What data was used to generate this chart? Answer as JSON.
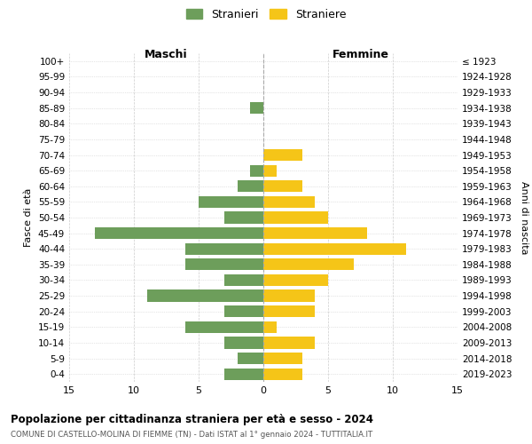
{
  "age_groups": [
    "100+",
    "95-99",
    "90-94",
    "85-89",
    "80-84",
    "75-79",
    "70-74",
    "65-69",
    "60-64",
    "55-59",
    "50-54",
    "45-49",
    "40-44",
    "35-39",
    "30-34",
    "25-29",
    "20-24",
    "15-19",
    "10-14",
    "5-9",
    "0-4"
  ],
  "birth_years": [
    "≤ 1923",
    "1924-1928",
    "1929-1933",
    "1934-1938",
    "1939-1943",
    "1944-1948",
    "1949-1953",
    "1954-1958",
    "1959-1963",
    "1964-1968",
    "1969-1973",
    "1974-1978",
    "1979-1983",
    "1984-1988",
    "1989-1993",
    "1994-1998",
    "1999-2003",
    "2004-2008",
    "2009-2013",
    "2014-2018",
    "2019-2023"
  ],
  "males": [
    0,
    0,
    0,
    1,
    0,
    0,
    0,
    1,
    2,
    5,
    3,
    13,
    6,
    6,
    3,
    9,
    3,
    6,
    3,
    2,
    3
  ],
  "females": [
    0,
    0,
    0,
    0,
    0,
    0,
    3,
    1,
    3,
    4,
    5,
    8,
    11,
    7,
    5,
    4,
    4,
    1,
    4,
    3,
    3
  ],
  "male_color": "#6d9e5b",
  "female_color": "#f5c518",
  "background_color": "#ffffff",
  "grid_color": "#cccccc",
  "bar_height": 0.75,
  "xlim": 15,
  "title": "Popolazione per cittadinanza straniera per età e sesso - 2024",
  "subtitle": "COMUNE DI CASTELLO-MOLINA DI FIEMME (TN) - Dati ISTAT al 1° gennaio 2024 - TUTTITALIA.IT",
  "xlabel_left": "Maschi",
  "xlabel_right": "Femmine",
  "ylabel_left": "Fasce di età",
  "ylabel_right": "Anni di nascita",
  "legend_male": "Stranieri",
  "legend_female": "Straniere",
  "center_line_color": "#aaaaaa"
}
